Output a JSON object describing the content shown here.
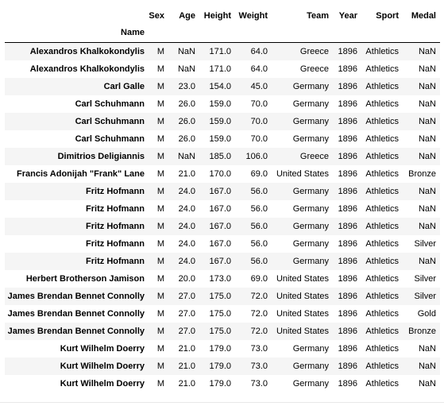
{
  "table": {
    "index_name": "Name",
    "columns": [
      "Sex",
      "Age",
      "Height",
      "Weight",
      "Team",
      "Year",
      "Sport",
      "Medal"
    ],
    "rows": [
      {
        "name": "Alexandros Khalkokondylis",
        "cells": [
          "M",
          "NaN",
          "171.0",
          "64.0",
          "Greece",
          "1896",
          "Athletics",
          "NaN"
        ]
      },
      {
        "name": "Alexandros Khalkokondylis",
        "cells": [
          "M",
          "NaN",
          "171.0",
          "64.0",
          "Greece",
          "1896",
          "Athletics",
          "NaN"
        ]
      },
      {
        "name": "Carl Galle",
        "cells": [
          "M",
          "23.0",
          "154.0",
          "45.0",
          "Germany",
          "1896",
          "Athletics",
          "NaN"
        ]
      },
      {
        "name": "Carl Schuhmann",
        "cells": [
          "M",
          "26.0",
          "159.0",
          "70.0",
          "Germany",
          "1896",
          "Athletics",
          "NaN"
        ]
      },
      {
        "name": "Carl Schuhmann",
        "cells": [
          "M",
          "26.0",
          "159.0",
          "70.0",
          "Germany",
          "1896",
          "Athletics",
          "NaN"
        ]
      },
      {
        "name": "Carl Schuhmann",
        "cells": [
          "M",
          "26.0",
          "159.0",
          "70.0",
          "Germany",
          "1896",
          "Athletics",
          "NaN"
        ]
      },
      {
        "name": "Dimitrios Deligiannis",
        "cells": [
          "M",
          "NaN",
          "185.0",
          "106.0",
          "Greece",
          "1896",
          "Athletics",
          "NaN"
        ]
      },
      {
        "name": "Francis Adonijah \"Frank\" Lane",
        "cells": [
          "M",
          "21.0",
          "170.0",
          "69.0",
          "United States",
          "1896",
          "Athletics",
          "Bronze"
        ]
      },
      {
        "name": "Fritz Hofmann",
        "cells": [
          "M",
          "24.0",
          "167.0",
          "56.0",
          "Germany",
          "1896",
          "Athletics",
          "NaN"
        ]
      },
      {
        "name": "Fritz Hofmann",
        "cells": [
          "M",
          "24.0",
          "167.0",
          "56.0",
          "Germany",
          "1896",
          "Athletics",
          "NaN"
        ]
      },
      {
        "name": "Fritz Hofmann",
        "cells": [
          "M",
          "24.0",
          "167.0",
          "56.0",
          "Germany",
          "1896",
          "Athletics",
          "NaN"
        ]
      },
      {
        "name": "Fritz Hofmann",
        "cells": [
          "M",
          "24.0",
          "167.0",
          "56.0",
          "Germany",
          "1896",
          "Athletics",
          "Silver"
        ]
      },
      {
        "name": "Fritz Hofmann",
        "cells": [
          "M",
          "24.0",
          "167.0",
          "56.0",
          "Germany",
          "1896",
          "Athletics",
          "NaN"
        ]
      },
      {
        "name": "Herbert Brotherson Jamison",
        "cells": [
          "M",
          "20.0",
          "173.0",
          "69.0",
          "United States",
          "1896",
          "Athletics",
          "Silver"
        ]
      },
      {
        "name": "James Brendan Bennet Connolly",
        "cells": [
          "M",
          "27.0",
          "175.0",
          "72.0",
          "United States",
          "1896",
          "Athletics",
          "Silver"
        ]
      },
      {
        "name": "James Brendan Bennet Connolly",
        "cells": [
          "M",
          "27.0",
          "175.0",
          "72.0",
          "United States",
          "1896",
          "Athletics",
          "Gold"
        ]
      },
      {
        "name": "James Brendan Bennet Connolly",
        "cells": [
          "M",
          "27.0",
          "175.0",
          "72.0",
          "United States",
          "1896",
          "Athletics",
          "Bronze"
        ]
      },
      {
        "name": "Kurt Wilhelm Doerry",
        "cells": [
          "M",
          "21.0",
          "179.0",
          "73.0",
          "Germany",
          "1896",
          "Athletics",
          "NaN"
        ]
      },
      {
        "name": "Kurt Wilhelm Doerry",
        "cells": [
          "M",
          "21.0",
          "179.0",
          "73.0",
          "Germany",
          "1896",
          "Athletics",
          "NaN"
        ]
      },
      {
        "name": "Kurt Wilhelm Doerry",
        "cells": [
          "M",
          "21.0",
          "179.0",
          "73.0",
          "Germany",
          "1896",
          "Athletics",
          "NaN"
        ]
      }
    ]
  },
  "colors": {
    "stripe": "#f5f5f5",
    "background": "#ffffff",
    "text": "#000000",
    "header_rule": "#000000"
  }
}
